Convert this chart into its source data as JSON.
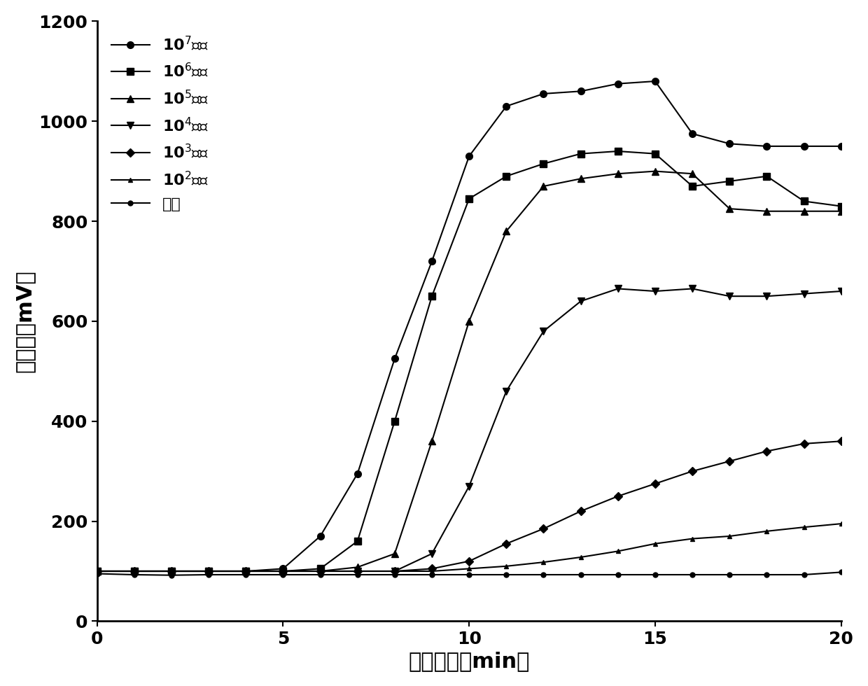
{
  "title": "",
  "xlabel": "反应时间（min）",
  "ylabel": "荧光値（mV）",
  "xlim": [
    0,
    20
  ],
  "ylim": [
    0,
    1200
  ],
  "xticks": [
    0,
    5,
    10,
    15,
    20
  ],
  "yticks": [
    0,
    200,
    400,
    600,
    800,
    1000,
    1200
  ],
  "series": [
    {
      "label": "10$^7$拷贝",
      "marker": "o",
      "markersize": 7,
      "x": [
        0,
        1,
        2,
        3,
        4,
        5,
        6,
        7,
        8,
        9,
        10,
        11,
        12,
        13,
        14,
        15,
        16,
        17,
        18,
        19,
        20
      ],
      "y": [
        100,
        100,
        100,
        100,
        100,
        105,
        170,
        295,
        525,
        720,
        930,
        1030,
        1055,
        1060,
        1075,
        1080,
        975,
        955,
        950,
        950,
        950
      ]
    },
    {
      "label": "10$^6$拷贝",
      "marker": "s",
      "markersize": 7,
      "x": [
        0,
        1,
        2,
        3,
        4,
        5,
        6,
        7,
        8,
        9,
        10,
        11,
        12,
        13,
        14,
        15,
        16,
        17,
        18,
        19,
        20
      ],
      "y": [
        100,
        100,
        100,
        100,
        100,
        100,
        105,
        160,
        400,
        650,
        845,
        890,
        915,
        935,
        940,
        935,
        870,
        880,
        890,
        840,
        830
      ]
    },
    {
      "label": "10$^5$拷贝",
      "marker": "^",
      "markersize": 7,
      "x": [
        0,
        1,
        2,
        3,
        4,
        5,
        6,
        7,
        8,
        9,
        10,
        11,
        12,
        13,
        14,
        15,
        16,
        17,
        18,
        19,
        20
      ],
      "y": [
        100,
        100,
        100,
        100,
        100,
        100,
        100,
        108,
        135,
        360,
        600,
        780,
        870,
        885,
        895,
        900,
        895,
        825,
        820,
        820,
        820
      ]
    },
    {
      "label": "10$^4$拷贝",
      "marker": "v",
      "markersize": 7,
      "x": [
        0,
        1,
        2,
        3,
        4,
        5,
        6,
        7,
        8,
        9,
        10,
        11,
        12,
        13,
        14,
        15,
        16,
        17,
        18,
        19,
        20
      ],
      "y": [
        100,
        100,
        100,
        100,
        100,
        100,
        100,
        100,
        100,
        135,
        270,
        460,
        580,
        640,
        665,
        660,
        665,
        650,
        650,
        655,
        660
      ]
    },
    {
      "label": "10$^3$拷贝",
      "marker": "D",
      "markersize": 6,
      "x": [
        0,
        1,
        2,
        3,
        4,
        5,
        6,
        7,
        8,
        9,
        10,
        11,
        12,
        13,
        14,
        15,
        16,
        17,
        18,
        19,
        20
      ],
      "y": [
        100,
        100,
        100,
        100,
        100,
        100,
        100,
        100,
        100,
        105,
        120,
        155,
        185,
        220,
        250,
        275,
        300,
        320,
        340,
        355,
        360
      ]
    },
    {
      "label": "10$^2$拷贝",
      "marker": "^",
      "markersize": 5,
      "x": [
        0,
        1,
        2,
        3,
        4,
        5,
        6,
        7,
        8,
        9,
        10,
        11,
        12,
        13,
        14,
        15,
        16,
        17,
        18,
        19,
        20
      ],
      "y": [
        100,
        100,
        100,
        100,
        100,
        100,
        100,
        100,
        100,
        100,
        105,
        110,
        118,
        128,
        140,
        155,
        165,
        170,
        180,
        188,
        195
      ]
    },
    {
      "label": "阴性",
      "marker": "o",
      "markersize": 5,
      "x": [
        0,
        1,
        2,
        3,
        4,
        5,
        6,
        7,
        8,
        9,
        10,
        11,
        12,
        13,
        14,
        15,
        16,
        17,
        18,
        19,
        20
      ],
      "y": [
        95,
        93,
        92,
        93,
        93,
        93,
        93,
        93,
        93,
        93,
        93,
        93,
        93,
        93,
        93,
        93,
        93,
        93,
        93,
        93,
        98
      ]
    }
  ],
  "background_color": "#ffffff"
}
